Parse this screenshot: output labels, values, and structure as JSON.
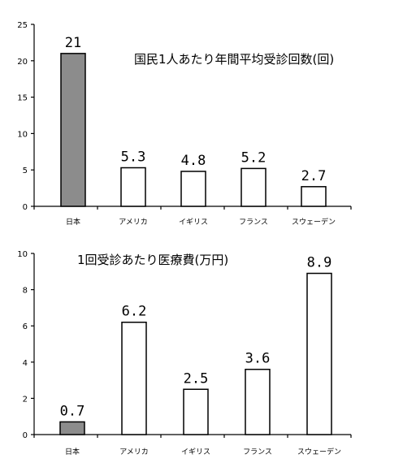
{
  "chart_data": [
    {
      "type": "bar",
      "title": "国民1人あたり年間平均受診回数(回)",
      "categories": [
        "日本",
        "アメリカ",
        "イギリス",
        "フランス",
        "スウェーデン"
      ],
      "values": [
        21,
        5.3,
        4.8,
        5.2,
        2.7
      ],
      "value_labels": [
        "21",
        "5.3",
        "4.8",
        "5.2",
        "2.7"
      ],
      "y_ticks": [
        "0",
        "5",
        "10",
        "15",
        "20",
        "25"
      ],
      "ylim": [
        0,
        25
      ],
      "highlight_index": 0,
      "colors": {
        "highlight": "#8c8c8c",
        "default": "#ffffff",
        "stroke": "#000000"
      },
      "grid": false,
      "xlabel": "",
      "ylabel": ""
    },
    {
      "type": "bar",
      "title": "1回受診あたり医療費(万円)",
      "categories": [
        "日本",
        "アメリカ",
        "イギリス",
        "フランス",
        "スウェーデン"
      ],
      "values": [
        0.7,
        6.2,
        2.5,
        3.6,
        8.9
      ],
      "value_labels": [
        "0.7",
        "6.2",
        "2.5",
        "3.6",
        "8.9"
      ],
      "y_ticks": [
        "0",
        "2",
        "4",
        "6",
        "8",
        "10"
      ],
      "ylim": [
        0,
        10
      ],
      "highlight_index": 0,
      "colors": {
        "highlight": "#8c8c8c",
        "default": "#ffffff",
        "stroke": "#000000"
      },
      "grid": false,
      "xlabel": "",
      "ylabel": ""
    }
  ]
}
